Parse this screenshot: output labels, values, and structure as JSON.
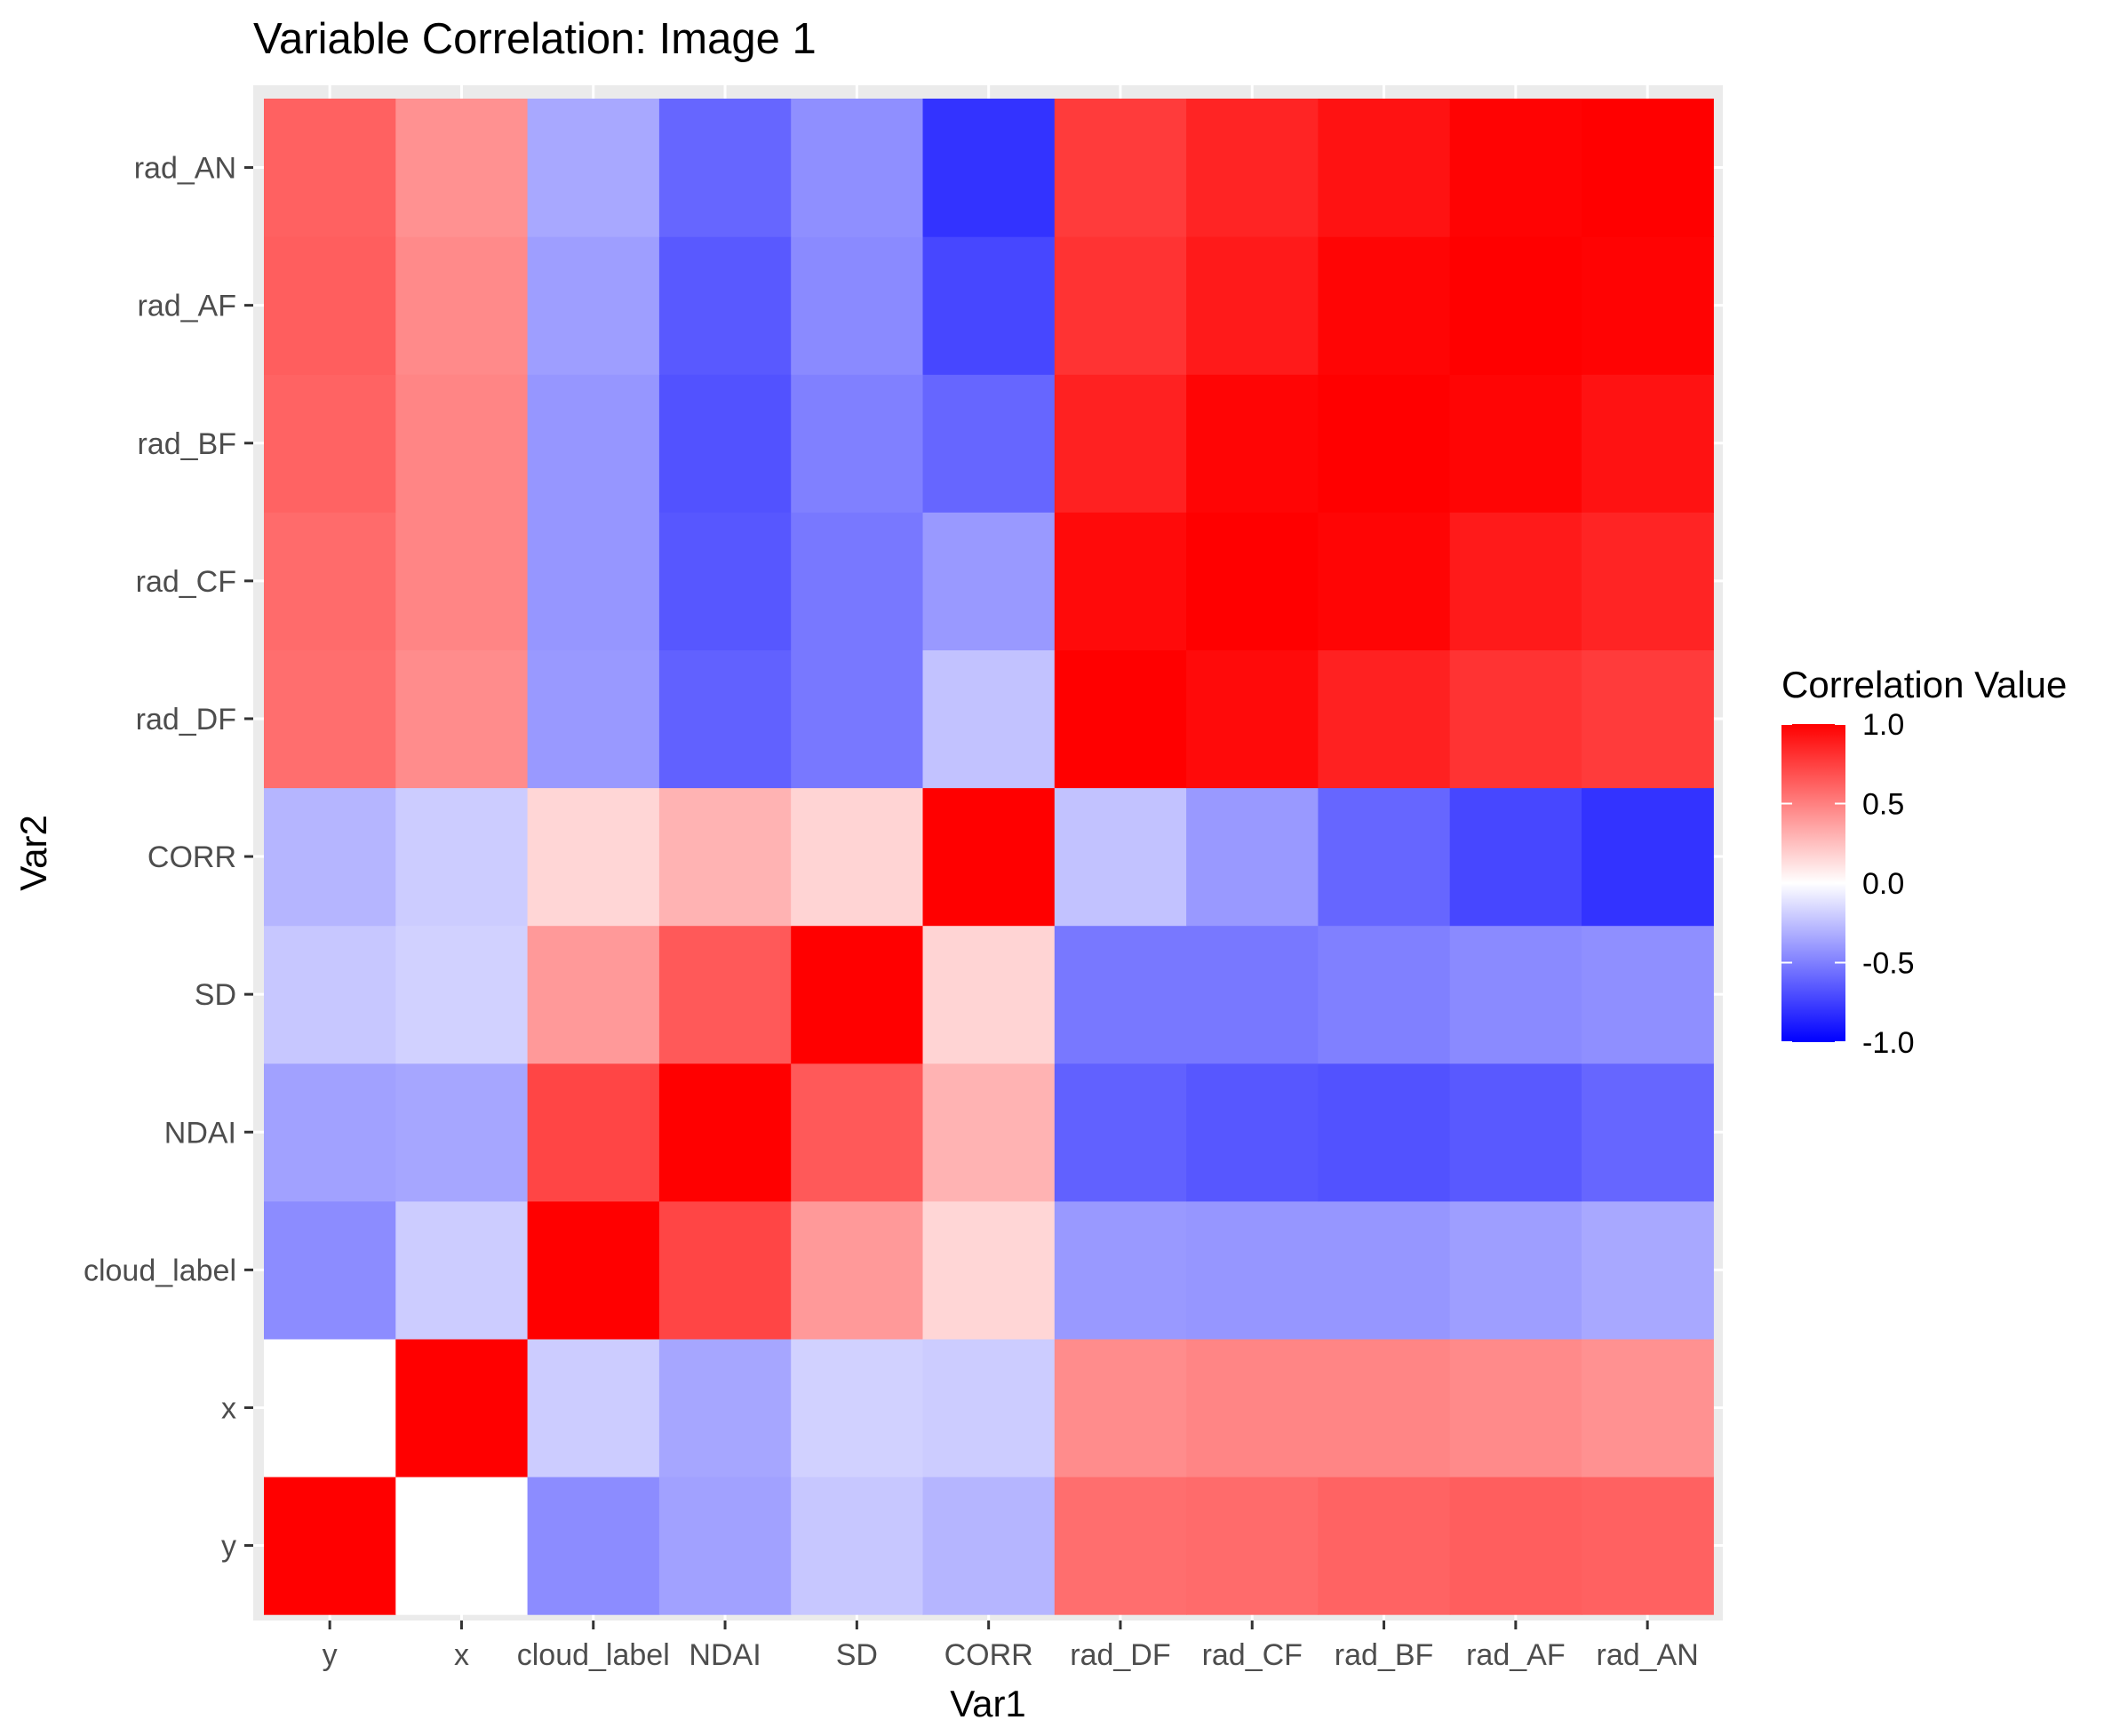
{
  "chart_data": {
    "type": "heatmap",
    "title": "Variable Correlation: Image 1",
    "xlabel": "Var1",
    "ylabel": "Var2",
    "x_categories": [
      "y",
      "x",
      "cloud_label",
      "NDAI",
      "SD",
      "CORR",
      "rad_DF",
      "rad_CF",
      "rad_BF",
      "rad_AF",
      "rad_AN"
    ],
    "y_categories": [
      "y",
      "x",
      "cloud_label",
      "NDAI",
      "SD",
      "CORR",
      "rad_DF",
      "rad_CF",
      "rad_BF",
      "rad_AF",
      "rad_AN"
    ],
    "matrix": [
      [
        1.0,
        0.0,
        -0.45,
        -0.37,
        -0.22,
        -0.29,
        0.57,
        0.58,
        0.61,
        0.63,
        0.62
      ],
      [
        0.0,
        1.0,
        -0.2,
        -0.35,
        -0.18,
        -0.2,
        0.45,
        0.48,
        0.48,
        0.46,
        0.43
      ],
      [
        -0.45,
        -0.2,
        1.0,
        0.73,
        0.4,
        0.16,
        -0.4,
        -0.41,
        -0.41,
        -0.38,
        -0.34
      ],
      [
        -0.37,
        -0.35,
        0.73,
        1.0,
        0.65,
        0.3,
        -0.62,
        -0.66,
        -0.68,
        -0.65,
        -0.6
      ],
      [
        -0.22,
        -0.18,
        0.4,
        0.65,
        1.0,
        0.17,
        -0.53,
        -0.53,
        -0.5,
        -0.46,
        -0.44
      ],
      [
        -0.29,
        -0.2,
        0.16,
        0.3,
        0.17,
        1.0,
        -0.24,
        -0.4,
        -0.6,
        -0.72,
        -0.8
      ],
      [
        0.57,
        0.45,
        -0.4,
        -0.62,
        -0.53,
        -0.24,
        1.0,
        0.96,
        0.87,
        0.8,
        0.77
      ],
      [
        0.58,
        0.48,
        -0.41,
        -0.66,
        -0.53,
        -0.4,
        0.96,
        1.0,
        0.98,
        0.9,
        0.86
      ],
      [
        0.61,
        0.48,
        -0.41,
        -0.68,
        -0.5,
        -0.6,
        0.87,
        0.98,
        1.0,
        0.98,
        0.93
      ],
      [
        0.63,
        0.46,
        -0.38,
        -0.65,
        -0.46,
        -0.72,
        0.8,
        0.9,
        0.98,
        1.0,
        0.99
      ],
      [
        0.62,
        0.43,
        -0.34,
        -0.6,
        -0.44,
        -0.8,
        0.77,
        0.86,
        0.93,
        0.99,
        1.0
      ]
    ],
    "value_range": [
      -1,
      1
    ],
    "colors": {
      "low": "#0000ff",
      "mid": "#ffffff",
      "high": "#ff0000"
    },
    "panel_background": "#ebebeb",
    "legend": {
      "title": "Correlation Value",
      "position": "right",
      "breaks": [
        1.0,
        0.5,
        0.0,
        -0.5,
        -1.0
      ],
      "labels": [
        "1.0",
        "0.5",
        "0.0",
        "-0.5",
        "-1.0"
      ]
    }
  }
}
